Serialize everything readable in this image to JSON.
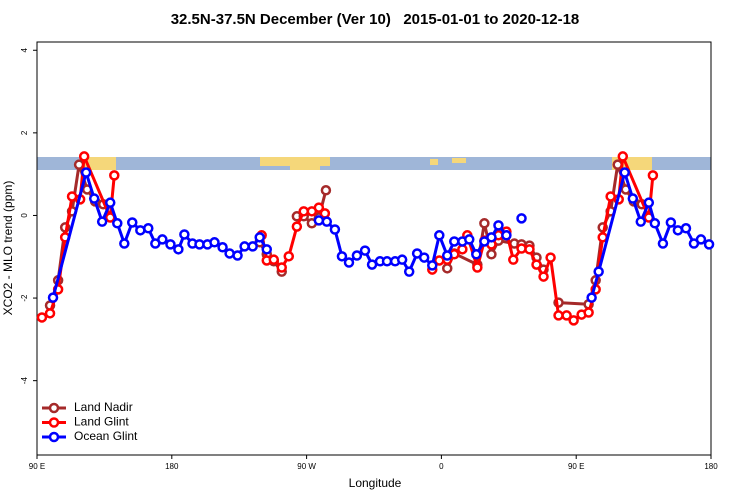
{
  "chart_data": {
    "type": "line",
    "title": "32.5N-37.5N December (Ver 10)   2015-01-01 to 2020-12-18",
    "x_label": "Longitude",
    "y_label": "XCO2 - MLO trend (ppm)",
    "xlim": [
      90,
      540
    ],
    "xticks": [
      {
        "value": 90,
        "label": "90 E"
      },
      {
        "value": 180,
        "label": "180"
      },
      {
        "value": 270,
        "label": "90 W"
      },
      {
        "value": 360,
        "label": "0"
      },
      {
        "value": 450,
        "label": "90 E"
      },
      {
        "value": 540,
        "label": "180"
      }
    ],
    "ylim": [
      -5.8,
      4.2
    ],
    "yticks": [
      -4,
      -2,
      0,
      2,
      4
    ],
    "legend": "bottom-left",
    "series": [
      {
        "name": "Land Nadir",
        "color": "#a52a2a",
        "x": [
          98.7,
          104.1,
          108.8,
          113.4,
          118.1,
          123.5,
          128.8,
          134.2,
          null,
          238.7,
          243.4,
          248.1,
          253.4,
          null,
          263.5,
          268.1,
          273.5,
          278.2,
          282.9,
          null,
          363.9,
          368.6,
          384.0,
          388.7,
          393.4,
          398.1,
          408.7,
          413.5,
          418.8,
          423.5,
          428.2,
          null,
          438.2,
          458.3,
          463.0,
          467.7,
          473.0,
          477.7,
          483.1,
          488.4,
          493.8
        ],
        "values": [
          -2.18,
          -1.57,
          -0.29,
          0.1,
          1.23,
          0.63,
          0.34,
          0.27,
          null,
          -0.65,
          -0.94,
          -1.11,
          -1.36,
          null,
          -0.02,
          -0.02,
          -0.19,
          -0.05,
          0.61,
          null,
          -1.28,
          -0.92,
          -1.19,
          -0.19,
          -0.94,
          -0.61,
          -0.68,
          -0.7,
          -0.73,
          -1.02,
          -1.31,
          null,
          -2.11,
          -2.15,
          -1.57,
          -0.29,
          0.1,
          1.23,
          0.63,
          0.34,
          0.27
        ]
      },
      {
        "name": "Land Glint",
        "color": "#ff0000",
        "x": [
          93.3,
          98.7,
          104.1,
          108.8,
          113.4,
          118.8,
          121.5,
          138.9,
          141.6,
          null,
          240.0,
          243.4,
          248.1,
          253.4,
          258.1,
          263.5,
          268.1,
          273.5,
          278.2,
          282.2,
          null,
          353.9,
          358.6,
          363.9,
          368.6,
          374.0,
          377.3,
          384.0,
          388.7,
          393.4,
          398.1,
          403.4,
          408.0,
          413.5,
          418.8,
          423.5,
          428.2,
          432.9,
          438.2,
          443.6,
          448.3,
          453.6,
          458.3,
          463.0,
          467.7,
          473.0,
          478.4,
          481.1,
          498.5,
          501.2
        ],
        "values": [
          -2.47,
          -2.37,
          -1.79,
          -0.53,
          0.46,
          0.39,
          1.43,
          -0.05,
          0.97,
          null,
          -0.48,
          -1.09,
          -1.07,
          -1.26,
          -0.99,
          -0.27,
          0.1,
          0.1,
          0.19,
          0.05,
          null,
          -1.31,
          -1.09,
          -1.07,
          -0.94,
          -0.82,
          -0.48,
          -1.26,
          -0.61,
          -0.7,
          -0.48,
          -0.39,
          -1.07,
          -0.8,
          -0.82,
          -1.19,
          -1.48,
          -1.02,
          -2.42,
          -2.42,
          -2.54,
          -2.4,
          -2.35,
          -1.79,
          -0.53,
          0.46,
          0.39,
          1.43,
          -0.05,
          0.97
        ]
      },
      {
        "name": "Ocean Glint",
        "color": "#0000ff",
        "x": [
          100.7,
          122.8,
          128.2,
          133.5,
          138.9,
          143.6,
          148.3,
          153.6,
          159.0,
          164.3,
          169.0,
          173.7,
          179.1,
          184.4,
          188.4,
          193.8,
          198.5,
          203.8,
          208.5,
          213.9,
          218.6,
          223.9,
          228.6,
          234.0,
          238.7,
          243.4,
          null,
          278.2,
          283.5,
          288.9,
          293.6,
          298.3,
          303.6,
          309.0,
          313.7,
          319.0,
          323.7,
          329.1,
          333.8,
          338.5,
          343.8,
          348.5,
          353.9,
          358.6,
          363.9,
          368.6,
          374.0,
          378.6,
          383.3,
          388.7,
          393.4,
          398.1,
          403.4,
          null,
          413.5,
          null,
          460.3,
          465.0,
          482.4,
          487.8,
          493.1,
          498.5,
          502.5,
          507.9,
          513.2,
          517.9,
          523.3,
          528.6,
          533.3,
          538.7
        ],
        "values": [
          -1.99,
          1.04,
          0.41,
          -0.15,
          0.31,
          -0.19,
          -0.68,
          -0.17,
          -0.36,
          -0.31,
          -0.68,
          -0.58,
          -0.7,
          -0.82,
          -0.46,
          -0.68,
          -0.7,
          -0.7,
          -0.65,
          -0.77,
          -0.92,
          -0.97,
          -0.75,
          -0.75,
          -0.53,
          -0.82,
          null,
          -0.12,
          -0.15,
          -0.34,
          -0.99,
          -1.14,
          -0.97,
          -0.85,
          -1.19,
          -1.11,
          -1.11,
          -1.11,
          -1.07,
          -1.36,
          -0.92,
          -1.02,
          -1.21,
          -0.48,
          -0.97,
          -0.63,
          -0.63,
          -0.58,
          -0.94,
          -0.63,
          -0.53,
          -0.24,
          -0.48,
          null,
          -0.07,
          null,
          -1.99,
          -1.36,
          1.04,
          0.41,
          -0.15,
          0.31,
          -0.19,
          -0.68,
          -0.17,
          -0.36,
          -0.31,
          -0.68,
          -0.58,
          -0.7
        ]
      }
    ]
  }
}
